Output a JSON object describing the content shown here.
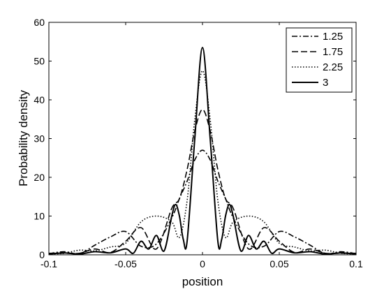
{
  "chart_data": {
    "type": "line",
    "title": "",
    "xlabel": "position",
    "ylabel": "Probability density",
    "xlim": [
      -0.1,
      0.1
    ],
    "ylim": [
      0,
      60
    ],
    "xticks": [
      -0.1,
      -0.05,
      0,
      0.05,
      0.1
    ],
    "xtick_labels": [
      "-0.1",
      "-0.05",
      "0",
      "0.05",
      "0.1"
    ],
    "yticks": [
      0,
      10,
      20,
      30,
      40,
      50,
      60
    ],
    "ytick_labels": [
      "0",
      "10",
      "20",
      "30",
      "40",
      "50",
      "60"
    ],
    "grid": false,
    "legend_position": "top-right",
    "series": [
      {
        "name": "1.25",
        "style": "dash-dot",
        "x": [
          -0.1,
          -0.09,
          -0.08,
          -0.07,
          -0.06,
          -0.05,
          -0.04,
          -0.03,
          -0.02,
          -0.015,
          -0.01,
          -0.005,
          0,
          0.005,
          0.01,
          0.015,
          0.02,
          0.03,
          0.04,
          0.05,
          0.06,
          0.07,
          0.08,
          0.09,
          0.1
        ],
        "y": [
          0.3,
          0.8,
          0.3,
          2.5,
          4.6,
          6.0,
          2.2,
          2.8,
          9.5,
          14.5,
          19.0,
          24.5,
          27.0,
          24.5,
          19.0,
          14.5,
          9.5,
          2.8,
          2.2,
          6.0,
          4.6,
          2.5,
          0.3,
          0.8,
          0.3
        ]
      },
      {
        "name": "1.75",
        "style": "dashed",
        "x": [
          -0.1,
          -0.09,
          -0.08,
          -0.07,
          -0.06,
          -0.05,
          -0.04,
          -0.03,
          -0.02,
          -0.015,
          -0.01,
          -0.005,
          0,
          0.005,
          0.01,
          0.015,
          0.02,
          0.03,
          0.04,
          0.05,
          0.06,
          0.07,
          0.08,
          0.09,
          0.1
        ],
        "y": [
          0.4,
          0.4,
          0.4,
          1.5,
          0.6,
          3.5,
          7.0,
          1.5,
          12.0,
          14.5,
          22.0,
          32.0,
          37.5,
          32.0,
          22.0,
          14.5,
          12.0,
          1.5,
          7.0,
          3.5,
          0.6,
          1.5,
          0.4,
          0.4,
          0.4
        ]
      },
      {
        "name": "2.25",
        "style": "dotted",
        "x": [
          -0.1,
          -0.09,
          -0.08,
          -0.07,
          -0.06,
          -0.05,
          -0.04,
          -0.03,
          -0.02,
          -0.015,
          -0.01,
          -0.005,
          0,
          0.005,
          0.01,
          0.015,
          0.02,
          0.03,
          0.04,
          0.05,
          0.06,
          0.07,
          0.08,
          0.09,
          0.1
        ],
        "y": [
          0.2,
          0.4,
          1.2,
          1.0,
          2.0,
          3.0,
          8.5,
          10.0,
          8.5,
          4.5,
          14.0,
          35.0,
          47.5,
          35.0,
          14.0,
          4.5,
          8.5,
          10.0,
          8.5,
          3.0,
          2.0,
          1.0,
          1.2,
          0.4,
          0.2
        ]
      },
      {
        "name": "3",
        "style": "solid",
        "x": [
          -0.1,
          -0.09,
          -0.08,
          -0.07,
          -0.06,
          -0.05,
          -0.045,
          -0.04,
          -0.035,
          -0.03,
          -0.025,
          -0.02,
          -0.0175,
          -0.015,
          -0.0125,
          -0.01,
          -0.005,
          0,
          0.005,
          0.01,
          0.0125,
          0.015,
          0.0175,
          0.02,
          0.025,
          0.03,
          0.035,
          0.04,
          0.045,
          0.05,
          0.06,
          0.07,
          0.08,
          0.09,
          0.1
        ],
        "y": [
          0.2,
          0.5,
          0.2,
          0.8,
          0.5,
          1.5,
          0.4,
          3.5,
          1.5,
          5.0,
          1.0,
          10.0,
          13.0,
          10.0,
          4.0,
          3.5,
          30.0,
          53.5,
          30.0,
          3.5,
          4.0,
          10.0,
          13.0,
          10.0,
          1.0,
          5.0,
          1.5,
          3.5,
          0.4,
          1.5,
          0.5,
          0.8,
          0.2,
          0.5,
          0.2
        ]
      }
    ]
  }
}
